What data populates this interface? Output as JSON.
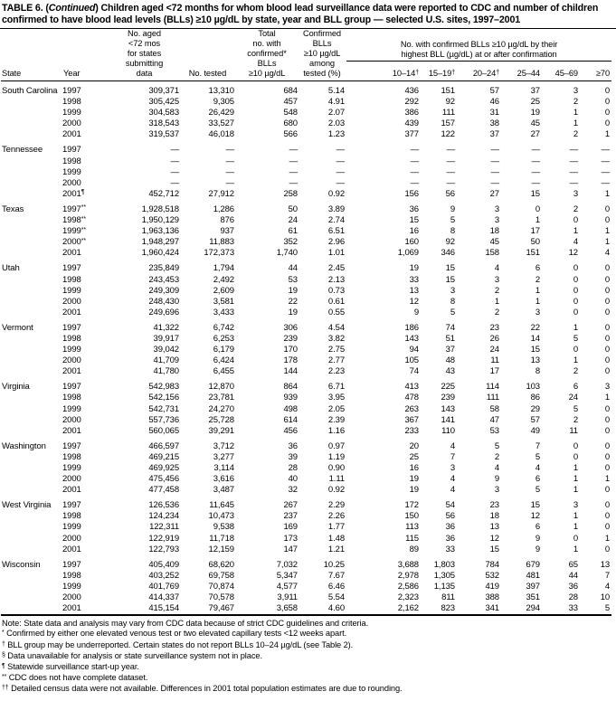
{
  "title": {
    "prefix": "TABLE 6. (",
    "continued": "Continued",
    "rest": ") Children aged <72 months for whom blood lead surveillance data were reported to CDC and number of",
    "line2": "children confirmed to have blood lead levels (BLLs) ≥10 µg/dL by state, year and BLL group — selected U.S. sites, 1997–2001"
  },
  "header": {
    "state": "State",
    "year": "Year",
    "no_aged": "No. aged\n<72 mos\nfor states\nsubmitting\ndata",
    "no_tested": "No. tested",
    "total_confirmed": "Total\nno. with\nconfirmed*\nBLLs\n≥10 µg/dL",
    "confirmed_pct": "Confirmed\nBLLs\n≥10 µg/dL\namong\ntested (%)",
    "group_header": "No. with confirmed BLLs ≥10 µg/dL by their\nhighest BLL (µg/dL) at or after confirmation",
    "bll_groups": [
      "10–14†",
      "15–19†",
      "20–24†",
      "25–44",
      "45–69",
      "≥70"
    ]
  },
  "states": [
    {
      "name": "South Carolina",
      "rows": [
        [
          "1997",
          "309,371",
          "13,310",
          "684",
          "5.14",
          "436",
          "151",
          "57",
          "37",
          "3",
          "0"
        ],
        [
          "1998",
          "305,425",
          "9,305",
          "457",
          "4.91",
          "292",
          "92",
          "46",
          "25",
          "2",
          "0"
        ],
        [
          "1999",
          "304,583",
          "26,429",
          "548",
          "2.07",
          "386",
          "111",
          "31",
          "19",
          "1",
          "0"
        ],
        [
          "2000",
          "318,543",
          "33,527",
          "680",
          "2.03",
          "439",
          "157",
          "38",
          "45",
          "1",
          "0"
        ],
        [
          "2001",
          "319,537",
          "46,018",
          "566",
          "1.23",
          "377",
          "122",
          "37",
          "27",
          "2",
          "1"
        ]
      ]
    },
    {
      "name": "Tennessee",
      "rows": [
        [
          "1997",
          "—",
          "—",
          "—",
          "—",
          "—",
          "—",
          "—",
          "—",
          "—",
          "—"
        ],
        [
          "1998",
          "—",
          "—",
          "—",
          "—",
          "—",
          "—",
          "—",
          "—",
          "—",
          "—"
        ],
        [
          "1999",
          "—",
          "—",
          "—",
          "—",
          "—",
          "—",
          "—",
          "—",
          "—",
          "—"
        ],
        [
          "2000",
          "—",
          "—",
          "—",
          "—",
          "—",
          "—",
          "—",
          "—",
          "—",
          "—"
        ],
        [
          "2001¶",
          "452,712",
          "27,912",
          "258",
          "0.92",
          "156",
          "56",
          "27",
          "15",
          "3",
          "1"
        ]
      ]
    },
    {
      "name": "Texas",
      "rows": [
        [
          "1997**",
          "1,928,518",
          "1,286",
          "50",
          "3.89",
          "36",
          "9",
          "3",
          "0",
          "2",
          "0"
        ],
        [
          "1998**",
          "1,950,129",
          "876",
          "24",
          "2.74",
          "15",
          "5",
          "3",
          "1",
          "0",
          "0"
        ],
        [
          "1999**",
          "1,963,136",
          "937",
          "61",
          "6.51",
          "16",
          "8",
          "18",
          "17",
          "1",
          "1"
        ],
        [
          "2000**",
          "1,948,297",
          "11,883",
          "352",
          "2.96",
          "160",
          "92",
          "45",
          "50",
          "4",
          "1"
        ],
        [
          "2001",
          "1,960,424",
          "172,373",
          "1,740",
          "1.01",
          "1,069",
          "346",
          "158",
          "151",
          "12",
          "4"
        ]
      ]
    },
    {
      "name": "Utah",
      "rows": [
        [
          "1997",
          "235,849",
          "1,794",
          "44",
          "2.45",
          "19",
          "15",
          "4",
          "6",
          "0",
          "0"
        ],
        [
          "1998",
          "243,453",
          "2,492",
          "53",
          "2.13",
          "33",
          "15",
          "3",
          "2",
          "0",
          "0"
        ],
        [
          "1999",
          "249,309",
          "2,609",
          "19",
          "0.73",
          "13",
          "3",
          "2",
          "1",
          "0",
          "0"
        ],
        [
          "2000",
          "248,430",
          "3,581",
          "22",
          "0.61",
          "12",
          "8",
          "1",
          "1",
          "0",
          "0"
        ],
        [
          "2001",
          "249,696",
          "3,433",
          "19",
          "0.55",
          "9",
          "5",
          "2",
          "3",
          "0",
          "0"
        ]
      ]
    },
    {
      "name": "Vermont",
      "rows": [
        [
          "1997",
          "41,322",
          "6,742",
          "306",
          "4.54",
          "186",
          "74",
          "23",
          "22",
          "1",
          "0"
        ],
        [
          "1998",
          "39,917",
          "6,253",
          "239",
          "3.82",
          "143",
          "51",
          "26",
          "14",
          "5",
          "0"
        ],
        [
          "1999",
          "39,042",
          "6,179",
          "170",
          "2.75",
          "94",
          "37",
          "24",
          "15",
          "0",
          "0"
        ],
        [
          "2000",
          "41,709",
          "6,424",
          "178",
          "2.77",
          "105",
          "48",
          "11",
          "13",
          "1",
          "0"
        ],
        [
          "2001",
          "41,780",
          "6,455",
          "144",
          "2.23",
          "74",
          "43",
          "17",
          "8",
          "2",
          "0"
        ]
      ]
    },
    {
      "name": "Virginia",
      "rows": [
        [
          "1997",
          "542,983",
          "12,870",
          "864",
          "6.71",
          "413",
          "225",
          "114",
          "103",
          "6",
          "3"
        ],
        [
          "1998",
          "542,156",
          "23,781",
          "939",
          "3.95",
          "478",
          "239",
          "111",
          "86",
          "24",
          "1"
        ],
        [
          "1999",
          "542,731",
          "24,270",
          "498",
          "2.05",
          "263",
          "143",
          "58",
          "29",
          "5",
          "0"
        ],
        [
          "2000",
          "557,736",
          "25,728",
          "614",
          "2.39",
          "367",
          "141",
          "47",
          "57",
          "2",
          "0"
        ],
        [
          "2001",
          "560,065",
          "39,291",
          "456",
          "1.16",
          "233",
          "110",
          "53",
          "49",
          "11",
          "0"
        ]
      ]
    },
    {
      "name": "Washington",
      "rows": [
        [
          "1997",
          "466,597",
          "3,712",
          "36",
          "0.97",
          "20",
          "4",
          "5",
          "7",
          "0",
          "0"
        ],
        [
          "1998",
          "469,215",
          "3,277",
          "39",
          "1.19",
          "25",
          "7",
          "2",
          "5",
          "0",
          "0"
        ],
        [
          "1999",
          "469,925",
          "3,114",
          "28",
          "0.90",
          "16",
          "3",
          "4",
          "4",
          "1",
          "0"
        ],
        [
          "2000",
          "475,456",
          "3,616",
          "40",
          "1.11",
          "19",
          "4",
          "9",
          "6",
          "1",
          "1"
        ],
        [
          "2001",
          "477,458",
          "3,487",
          "32",
          "0.92",
          "19",
          "4",
          "3",
          "5",
          "1",
          "0"
        ]
      ]
    },
    {
      "name": "West Virginia",
      "rows": [
        [
          "1997",
          "126,536",
          "11,645",
          "267",
          "2.29",
          "172",
          "54",
          "23",
          "15",
          "3",
          "0"
        ],
        [
          "1998",
          "124,234",
          "10,473",
          "237",
          "2.26",
          "150",
          "56",
          "18",
          "12",
          "1",
          "0"
        ],
        [
          "1999",
          "122,311",
          "9,538",
          "169",
          "1.77",
          "113",
          "36",
          "13",
          "6",
          "1",
          "0"
        ],
        [
          "2000",
          "122,919",
          "11,718",
          "173",
          "1.48",
          "115",
          "36",
          "12",
          "9",
          "0",
          "1"
        ],
        [
          "2001",
          "122,793",
          "12,159",
          "147",
          "1.21",
          "89",
          "33",
          "15",
          "9",
          "1",
          "0"
        ]
      ]
    },
    {
      "name": "Wisconsin",
      "rows": [
        [
          "1997",
          "405,409",
          "68,620",
          "7,032",
          "10.25",
          "3,688",
          "1,803",
          "784",
          "679",
          "65",
          "13"
        ],
        [
          "1998",
          "403,252",
          "69,758",
          "5,347",
          "7.67",
          "2,978",
          "1,305",
          "532",
          "481",
          "44",
          "7"
        ],
        [
          "1999",
          "401,769",
          "70,874",
          "4,577",
          "6.46",
          "2,586",
          "1,135",
          "419",
          "397",
          "36",
          "4"
        ],
        [
          "2000",
          "414,337",
          "70,578",
          "3,911",
          "5.54",
          "2,323",
          "811",
          "388",
          "351",
          "28",
          "10"
        ],
        [
          "2001",
          "415,154",
          "79,467",
          "3,658",
          "4.60",
          "2,162",
          "823",
          "341",
          "294",
          "33",
          "5"
        ]
      ]
    }
  ],
  "footnotes": [
    {
      "marker": "Note:",
      "sup": false,
      "text": "State data and analysis may vary from CDC data because of strict CDC guidelines and criteria."
    },
    {
      "marker": "*",
      "sup": true,
      "text": "Confirmed by either one elevated venous test or two elevated capillary tests <12 weeks apart."
    },
    {
      "marker": "†",
      "sup": true,
      "text": "BLL group may be underreported. Certain states do not report BLLs 10–24 µg/dL (see Table 2)."
    },
    {
      "marker": "§",
      "sup": true,
      "text": "Data unavailable for analysis or state surveillance system not in place."
    },
    {
      "marker": "¶",
      "sup": true,
      "text": "Statewide surveillance start-up year."
    },
    {
      "marker": "**",
      "sup": true,
      "text": "CDC does not have complete dataset."
    },
    {
      "marker": "††",
      "sup": true,
      "text": "Detailed census data were not available. Differences in 2001 total population estimates are due to rounding."
    }
  ]
}
